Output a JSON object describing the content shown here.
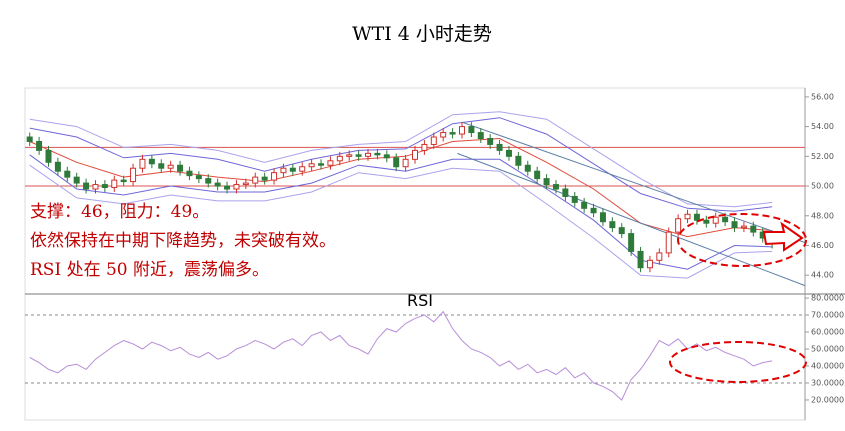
{
  "annotations": [
    "支撑：46，阻力：49。",
    "依然保持在中期下降趋势，未突破有效。",
    "RSI 处在 50 附近，震荡偏多。"
  ],
  "chart_data": [
    {
      "type": "candlestick",
      "title": "WTI 4 小时走势",
      "xlim": [
        -0.5,
        82.5
      ],
      "ylim": [
        42.8,
        56.6
      ],
      "yticks": [
        {
          "value": 44,
          "label": "44.00"
        },
        {
          "value": 46,
          "label": "46.00"
        },
        {
          "value": 48,
          "label": "48.00"
        },
        {
          "value": 50,
          "label": "50.00"
        },
        {
          "value": 52,
          "label": "52.00"
        },
        {
          "value": 54,
          "label": "54.00"
        },
        {
          "value": 56,
          "label": "56.00"
        }
      ],
      "up_color": "#d0302a",
      "down_color": "#2f7a3a",
      "open": [
        53.3,
        53.0,
        52.4,
        51.6,
        51.0,
        50.6,
        50.2,
        49.8,
        50.1,
        49.9,
        50.4,
        50.3,
        51.2,
        51.8,
        51.5,
        51.2,
        51.4,
        51.0,
        50.7,
        50.5,
        50.2,
        50.0,
        49.8,
        50.1,
        50.2,
        50.6,
        50.4,
        50.9,
        51.2,
        51.0,
        51.3,
        51.5,
        51.4,
        51.7,
        52.0,
        52.1,
        52.0,
        52.2,
        52.1,
        51.9,
        51.3,
        51.8,
        52.4,
        52.8,
        53.3,
        53.6,
        53.5,
        54.0,
        53.6,
        53.2,
        52.8,
        52.4,
        52.0,
        51.4,
        51.0,
        50.5,
        50.1,
        49.8,
        49.3,
        48.9,
        48.5,
        48.2,
        47.6,
        47.2,
        46.8,
        45.6,
        44.5,
        45.0,
        45.5,
        46.9,
        47.8,
        48.1,
        47.7,
        47.5,
        47.9,
        47.6,
        47.2,
        47.3,
        46.9,
        46.5
      ],
      "high": [
        53.6,
        53.3,
        52.7,
        51.9,
        51.3,
        50.9,
        50.5,
        50.4,
        50.4,
        50.7,
        50.7,
        51.5,
        52.1,
        52.1,
        51.8,
        51.7,
        51.7,
        51.3,
        51.0,
        50.8,
        50.5,
        50.3,
        50.4,
        50.5,
        50.9,
        50.9,
        51.2,
        51.5,
        51.5,
        51.6,
        51.8,
        51.8,
        52.0,
        52.3,
        52.4,
        52.4,
        52.5,
        52.5,
        52.4,
        52.2,
        52.1,
        52.7,
        53.1,
        53.6,
        53.9,
        53.9,
        54.3,
        54.3,
        53.9,
        53.5,
        53.1,
        52.7,
        52.3,
        51.7,
        51.3,
        50.8,
        50.4,
        50.1,
        49.6,
        49.2,
        48.8,
        48.5,
        47.9,
        47.5,
        47.1,
        45.9,
        45.3,
        45.8,
        47.2,
        48.1,
        48.4,
        48.4,
        48.0,
        48.2,
        48.2,
        47.9,
        47.6,
        47.6,
        47.2,
        46.8
      ],
      "low": [
        52.7,
        52.1,
        51.3,
        50.7,
        50.3,
        49.9,
        49.5,
        49.5,
        49.6,
        49.6,
        50.0,
        50.0,
        50.9,
        51.2,
        50.9,
        50.9,
        50.7,
        50.4,
        50.2,
        49.9,
        49.7,
        49.5,
        49.5,
        49.8,
        49.9,
        50.1,
        50.1,
        50.6,
        50.7,
        50.7,
        51.0,
        51.1,
        51.1,
        51.4,
        51.7,
        51.7,
        51.7,
        51.8,
        51.6,
        51.0,
        51.0,
        51.5,
        52.1,
        52.5,
        53.0,
        53.2,
        53.2,
        53.3,
        52.9,
        52.5,
        52.1,
        51.7,
        51.1,
        50.7,
        50.2,
        49.8,
        49.5,
        49.0,
        48.6,
        48.2,
        47.9,
        47.3,
        46.9,
        46.5,
        45.3,
        44.2,
        44.2,
        44.7,
        45.2,
        46.6,
        47.5,
        47.4,
        47.2,
        47.2,
        47.3,
        46.9,
        46.9,
        46.6,
        46.2,
        45.8
      ],
      "close": [
        53.0,
        52.4,
        51.6,
        51.0,
        50.6,
        50.2,
        49.8,
        50.1,
        49.9,
        50.4,
        50.3,
        51.2,
        51.8,
        51.5,
        51.2,
        51.4,
        51.0,
        50.7,
        50.5,
        50.2,
        50.0,
        49.8,
        50.1,
        50.2,
        50.6,
        50.4,
        50.9,
        51.2,
        51.0,
        51.3,
        51.5,
        51.4,
        51.7,
        52.0,
        52.1,
        52.0,
        52.2,
        52.1,
        51.9,
        51.3,
        51.8,
        52.4,
        52.8,
        53.3,
        53.6,
        53.5,
        54.0,
        53.6,
        53.2,
        52.8,
        52.4,
        52.0,
        51.4,
        51.0,
        50.5,
        50.1,
        49.8,
        49.3,
        48.9,
        48.5,
        48.2,
        47.6,
        47.2,
        46.8,
        45.6,
        44.5,
        45.0,
        45.5,
        46.9,
        47.8,
        48.1,
        47.7,
        47.5,
        47.9,
        47.6,
        47.2,
        47.3,
        46.9,
        46.5,
        46.1
      ],
      "overlays": [
        {
          "color": "#e04a3a",
          "x": [
            0,
            5,
            10,
            15,
            20,
            25,
            30,
            35,
            40,
            45,
            50,
            55,
            60,
            65,
            70,
            75,
            79
          ],
          "values": [
            53.0,
            51.6,
            50.6,
            51.0,
            50.6,
            50.3,
            51.0,
            51.8,
            52.0,
            53.0,
            53.2,
            51.6,
            49.8,
            47.5,
            46.6,
            47.2,
            47.0
          ]
        },
        {
          "color": "#6f66d8",
          "x": [
            0,
            5,
            10,
            15,
            20,
            25,
            30,
            35,
            40,
            45,
            50,
            55,
            60,
            65,
            70,
            75,
            79
          ],
          "values": [
            53.9,
            53.3,
            51.9,
            52.2,
            51.8,
            51.0,
            51.8,
            52.4,
            52.5,
            54.2,
            54.6,
            53.5,
            51.5,
            49.5,
            48.5,
            48.3,
            48.6
          ]
        },
        {
          "color": "#6f66d8",
          "x": [
            0,
            5,
            10,
            15,
            20,
            25,
            30,
            35,
            40,
            45,
            50,
            55,
            60,
            65,
            70,
            75,
            79
          ],
          "values": [
            52.1,
            49.8,
            49.4,
            50.0,
            49.6,
            49.6,
            50.2,
            51.4,
            51.0,
            51.8,
            51.8,
            49.8,
            47.7,
            45.0,
            44.4,
            46.0,
            45.9
          ]
        },
        {
          "color": "#a9a3ec",
          "x": [
            0,
            5,
            10,
            15,
            20,
            25,
            30,
            35,
            40,
            45,
            50,
            55,
            60,
            65,
            70,
            75,
            79
          ],
          "values": [
            54.5,
            54.0,
            52.6,
            52.8,
            52.4,
            51.6,
            52.4,
            52.8,
            53.0,
            54.8,
            55.0,
            54.5,
            52.5,
            50.5,
            48.8,
            48.6,
            48.9
          ]
        },
        {
          "color": "#a9a3ec",
          "x": [
            0,
            5,
            10,
            15,
            20,
            25,
            30,
            35,
            40,
            45,
            50,
            55,
            60,
            65,
            70,
            75,
            79
          ],
          "values": [
            51.4,
            49.2,
            48.8,
            49.4,
            49.0,
            49.0,
            49.6,
            50.9,
            50.5,
            51.2,
            51.0,
            48.8,
            46.5,
            44.0,
            43.8,
            45.5,
            45.6
          ]
        }
      ],
      "trendlines": [
        {
          "color": "#5c7fa6",
          "x": [
            46,
            82.5
          ],
          "values": [
            54.3,
            46.2
          ]
        },
        {
          "color": "#5c7fa6",
          "x": [
            45.5,
            82.5
          ],
          "values": [
            52.2,
            43.3
          ]
        }
      ],
      "hlines": [
        52.6,
        50.0
      ],
      "hline_color": "#d9534f"
    },
    {
      "type": "line",
      "title": "RSI",
      "xlim": [
        -0.5,
        82.5
      ],
      "ylim": [
        8.2,
        81.8
      ],
      "yticks": [
        {
          "value": 20,
          "label": "20.0000"
        },
        {
          "value": 30,
          "label": "30.0000"
        },
        {
          "value": 40,
          "label": "40.0000"
        },
        {
          "value": 50,
          "label": "50.0000"
        },
        {
          "value": 60,
          "label": "60.0000"
        },
        {
          "value": 70,
          "label": "70.0000"
        },
        {
          "value": 80,
          "label": "80.0000"
        }
      ],
      "color": "#b78fd8",
      "values": [
        45,
        42,
        38,
        36,
        40,
        41,
        38,
        44,
        48,
        52,
        55,
        53,
        50,
        54,
        52,
        49,
        51,
        47,
        45,
        48,
        44,
        46,
        50,
        52,
        55,
        53,
        50,
        54,
        56,
        52,
        58,
        60,
        55,
        58,
        52,
        50,
        47,
        56,
        62,
        60,
        65,
        68,
        70,
        66,
        72,
        62,
        55,
        50,
        48,
        45,
        40,
        43,
        38,
        41,
        36,
        38,
        35,
        39,
        33,
        36,
        30,
        28,
        25,
        20,
        32,
        38,
        46,
        55,
        52,
        56,
        50,
        53,
        49,
        51,
        48,
        46,
        44,
        40,
        42,
        43
      ],
      "hlines": [
        70,
        30
      ],
      "hline_color": "#888888"
    }
  ]
}
